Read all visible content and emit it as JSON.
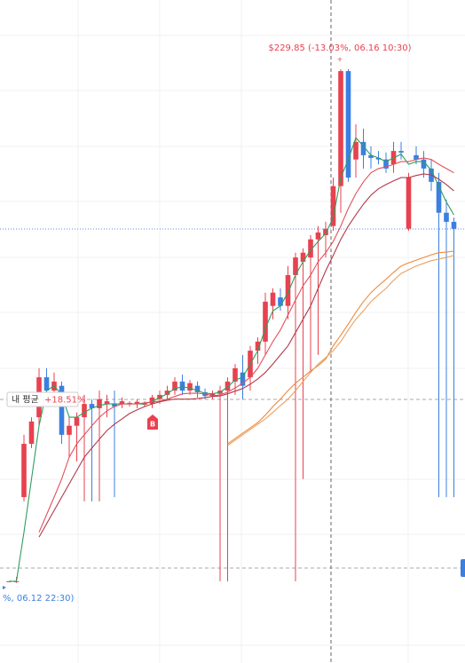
{
  "chart_data": {
    "type": "candlestick",
    "up_color": "#e8414f",
    "down_color": "#3b7fe0",
    "ylim": [
      118.35,
      242.85
    ],
    "open": [
      133.7,
      133.7,
      149.5,
      159.5,
      164.5,
      172.0,
      169.5,
      170.4,
      161.2,
      162.9,
      164.5,
      167.0,
      166.2,
      167.0,
      167.0,
      167.0,
      167.0,
      167.0,
      167.0,
      167.0,
      167.9,
      168.7,
      169.5,
      171.2,
      169.5,
      170.4,
      169.2,
      168.5,
      168.9,
      169.5,
      171.2,
      172.9,
      172.0,
      177.0,
      178.7,
      185.4,
      187.0,
      185.4,
      191.2,
      193.7,
      194.5,
      197.9,
      198.7,
      200.4,
      207.9,
      229.5,
      212.9,
      216.2,
      213.7,
      213.2,
      212.9,
      212.0,
      214.5,
      199.9,
      213.7,
      212.9,
      211.2,
      208.7,
      202.9,
      201.2
    ],
    "high": [
      133.7,
      134.5,
      161.2,
      164.5,
      173.7,
      173.7,
      172.9,
      171.2,
      164.5,
      165.4,
      168.7,
      167.9,
      169.5,
      168.7,
      169.5,
      168.2,
      167.5,
      167.9,
      167.5,
      168.7,
      169.5,
      170.4,
      172.0,
      172.5,
      171.5,
      171.2,
      169.9,
      169.5,
      170.4,
      172.0,
      174.5,
      176.2,
      177.9,
      179.5,
      187.9,
      188.7,
      188.7,
      192.9,
      195.4,
      196.2,
      198.7,
      200.4,
      201.2,
      209.5,
      229.85,
      229.85,
      219.5,
      218.7,
      215.4,
      214.5,
      214.2,
      216.2,
      216.2,
      210.4,
      215.4,
      214.5,
      212.9,
      210.4,
      205.4,
      202.0
    ],
    "low": [
      133.7,
      133.4,
      148.7,
      158.7,
      162.9,
      168.7,
      167.9,
      159.5,
      157.0,
      156.2,
      148.7,
      148.7,
      148.7,
      164.5,
      149.5,
      166.2,
      166.5,
      166.2,
      166.5,
      166.2,
      167.0,
      167.9,
      168.7,
      168.7,
      168.7,
      168.2,
      167.9,
      167.9,
      133.7,
      133.7,
      168.7,
      167.9,
      169.5,
      174.5,
      176.2,
      182.9,
      184.5,
      182.9,
      133.7,
      152.9,
      172.9,
      176.2,
      194.5,
      199.5,
      202.9,
      208.7,
      209.5,
      211.2,
      211.2,
      212.0,
      210.4,
      210.4,
      212.9,
      199.5,
      212.0,
      209.5,
      207.0,
      149.5,
      149.5,
      149.5
    ],
    "close": [
      133.7,
      133.7,
      159.5,
      163.7,
      172.0,
      169.5,
      171.2,
      161.2,
      162.9,
      164.5,
      167.0,
      166.2,
      167.9,
      167.5,
      166.5,
      167.5,
      167.2,
      167.4,
      167.0,
      168.2,
      168.7,
      169.5,
      171.2,
      169.5,
      170.9,
      169.2,
      168.5,
      168.9,
      169.5,
      171.2,
      173.7,
      170.4,
      177.0,
      178.7,
      186.2,
      187.9,
      185.4,
      191.2,
      194.5,
      195.4,
      197.9,
      199.2,
      199.9,
      207.9,
      229.5,
      209.5,
      216.2,
      213.7,
      213.2,
      212.9,
      211.2,
      214.5,
      214.2,
      209.5,
      212.9,
      211.2,
      208.7,
      202.9,
      201.2,
      199.9
    ],
    "series": [
      {
        "color": "#2e9e5e",
        "values": [
          133.7,
          133.7,
          142.9,
          152.9,
          162.9,
          169.5,
          170.4,
          168.7,
          164.5,
          164.5,
          165.4,
          166.2,
          166.7,
          167.0,
          167.0,
          167.0,
          167.0,
          167.0,
          167.0,
          167.5,
          168.2,
          168.9,
          169.9,
          170.2,
          170.0,
          169.5,
          169.0,
          168.9,
          169.2,
          170.2,
          171.5,
          172.0,
          174.5,
          177.0,
          181.2,
          184.5,
          185.4,
          187.9,
          191.2,
          193.7,
          195.9,
          197.5,
          199.0,
          202.0,
          209.5,
          212.9,
          217.0,
          215.4,
          213.7,
          213.2,
          212.5,
          213.2,
          213.9,
          212.0,
          212.5,
          212.5,
          210.9,
          207.9,
          204.9,
          202.5
        ]
      },
      {
        "color": "#e2515c",
        "values": [
          null,
          null,
          null,
          null,
          142.9,
          146.2,
          149.5,
          152.9,
          157.0,
          159.5,
          161.2,
          162.9,
          164.5,
          165.7,
          166.5,
          167.0,
          167.0,
          167.0,
          167.2,
          167.4,
          167.5,
          167.9,
          168.4,
          168.9,
          169.0,
          169.0,
          168.9,
          168.5,
          168.7,
          169.2,
          170.0,
          170.9,
          172.0,
          173.7,
          176.2,
          178.7,
          180.9,
          183.7,
          186.5,
          189.2,
          191.2,
          193.7,
          195.4,
          197.5,
          200.4,
          203.7,
          206.5,
          208.7,
          210.4,
          211.2,
          211.5,
          212.0,
          212.5,
          212.5,
          212.9,
          213.2,
          212.9,
          212.0,
          211.2,
          210.4
        ]
      },
      {
        "color": "#b23a4a",
        "values": [
          null,
          null,
          null,
          null,
          142.0,
          144.5,
          147.0,
          149.5,
          152.0,
          154.5,
          157.0,
          158.7,
          160.4,
          162.0,
          163.2,
          164.2,
          165.2,
          165.9,
          166.5,
          167.0,
          167.4,
          167.7,
          167.9,
          167.9,
          167.9,
          168.0,
          168.2,
          168.4,
          168.5,
          168.9,
          169.4,
          169.9,
          170.7,
          171.7,
          172.9,
          174.5,
          176.2,
          177.9,
          180.4,
          182.9,
          185.4,
          188.7,
          192.0,
          194.9,
          197.9,
          200.4,
          202.5,
          204.5,
          206.2,
          207.4,
          208.2,
          208.9,
          209.5,
          209.5,
          209.9,
          210.2,
          210.0,
          209.2,
          208.2,
          207.0
        ]
      },
      {
        "color": "#ee8a3a",
        "values": [
          null,
          null,
          null,
          null,
          null,
          null,
          null,
          null,
          null,
          null,
          null,
          null,
          null,
          null,
          null,
          null,
          null,
          null,
          null,
          null,
          null,
          null,
          null,
          null,
          null,
          null,
          null,
          null,
          null,
          159.5,
          160.5,
          161.5,
          162.5,
          163.5,
          164.9,
          166.5,
          167.9,
          169.5,
          170.9,
          172.0,
          173.2,
          174.2,
          175.4,
          177.9,
          179.9,
          182.0,
          184.2,
          186.2,
          187.9,
          189.2,
          190.4,
          191.7,
          192.9,
          193.5,
          194.0,
          194.5,
          195.0,
          195.4,
          195.5,
          195.7
        ]
      },
      {
        "color": "#e9a265",
        "values": [
          null,
          null,
          null,
          null,
          null,
          null,
          null,
          null,
          null,
          null,
          null,
          null,
          null,
          null,
          null,
          null,
          null,
          null,
          null,
          null,
          null,
          null,
          null,
          null,
          null,
          null,
          null,
          null,
          null,
          159.2,
          160.2,
          161.2,
          162.2,
          163.2,
          164.2,
          165.4,
          166.7,
          167.9,
          169.5,
          171.2,
          172.9,
          174.5,
          175.7,
          177.0,
          178.7,
          180.9,
          182.9,
          184.5,
          186.2,
          187.5,
          188.7,
          190.2,
          191.5,
          192.2,
          192.9,
          193.4,
          193.9,
          194.2,
          194.5,
          194.9
        ]
      }
    ],
    "high_label": "$229.85 (-13.03%, 06.16 10:30)",
    "average_label": "내 평균",
    "average_change": "+18.51%",
    "buy_marker": "B",
    "low_label": "%, 06.12 22:30)"
  }
}
